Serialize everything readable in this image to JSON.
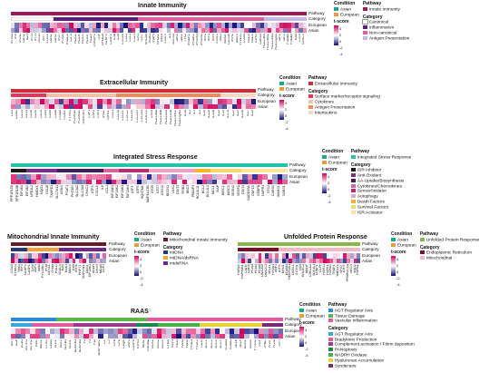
{
  "colors": {
    "asian": "#1fa78a",
    "european": "#ef9b3c",
    "pos": "#d6005a",
    "neg": "#12107e"
  },
  "colorbar": {
    "title": "t-score",
    "ticks": [
      "4",
      "2",
      "0",
      "-2",
      "-4"
    ]
  },
  "axis_labels": {
    "condition": "Condition",
    "pathway": "Pathway",
    "category": "Category",
    "european": "European",
    "asian": "Asian"
  },
  "panels": [
    {
      "id": "innate",
      "title": "Innate Immunity",
      "legend": {
        "condition": [
          "Asian",
          "European"
        ],
        "pathway": [
          "Innate Immunity"
        ],
        "category": [
          "Canonical",
          "Inflammation",
          "Non-canonical",
          "Antigen Presentation"
        ]
      },
      "genes": [
        "IFITM1",
        "IFI6",
        "IFI44L",
        "OAS1",
        "MX1",
        "IFIT1",
        "IFIT3",
        "ISG15",
        "IRF7",
        "STAT1",
        "OAS2",
        "OAS3",
        "IFI27",
        "IFITM3",
        "RSAD2",
        "CD74",
        "HLA-A",
        "HLA-B",
        "HLA-C",
        "HLA-E",
        "HLA-F",
        "TNFAIP3",
        "TNF",
        "NFKBIA",
        "NLRP3",
        "CASP1",
        "IL1B",
        "IL18",
        "CXCL8",
        "CCL2",
        "CCL3",
        "CCL4",
        "TLR4",
        "TLR7",
        "MYD88",
        "IRAK4",
        "TRAF6",
        "NFKB1",
        "RELA",
        "STAT3",
        "IL6",
        "SOCS3",
        "JAK1",
        "JAK2",
        "TYK2",
        "IFNAR1",
        "IFNAR2",
        "IFNGR1",
        "IFNGR2",
        "IRF1",
        "IRF3",
        "IRF9",
        "STAT2",
        "TBK1",
        "IKBKE",
        "DDX58",
        "IFIH1",
        "MAVS",
        "STING1",
        "CGAS",
        "NOD2",
        "NOD1",
        "RIPK2",
        "CARD9",
        "HLA-DRA",
        "HLA-DRB1",
        "HLA-DPA1",
        "HLA-DQA1",
        "TAP1",
        "TAP2",
        "PSMB8",
        "PSMB9",
        "B2M",
        "CIITA",
        "NLRC5"
      ]
    },
    {
      "id": "extracellular",
      "title": "Extracellular Immunity",
      "legend": {
        "condition": [
          "Asian",
          "European"
        ],
        "pathway": [
          "Extracellular Immunity"
        ],
        "category": [
          "Surface marker/receptor signaling",
          "Cytokines",
          "Antigen Presentation",
          "Interleukins"
        ]
      },
      "genes": [
        "CD4",
        "CD8A",
        "CD14",
        "CD19",
        "CD38",
        "CD40",
        "CD44",
        "CD69",
        "CD80",
        "CD86",
        "ITGAM",
        "ITGAX",
        "PTPRC",
        "FCGR1A",
        "FCGR3A",
        "TNFRSF4",
        "CSF1",
        "CSF2",
        "CSF3",
        "IFNG",
        "TGFB1",
        "CCL5",
        "CCL20",
        "CXCL1",
        "CXCL2",
        "CXCL9",
        "CXCL10",
        "CXCL11",
        "CX3CL1",
        "CIITA",
        "HLA-DMA",
        "HLA-DMB",
        "HLA-DOA",
        "HLA-DOB",
        "HLA-DPB1",
        "HLA-DQB1",
        "IL1A",
        "IL2",
        "IL4",
        "IL5",
        "IL10",
        "IL12A",
        "IL12B",
        "IL13",
        "IL15",
        "IL17A",
        "IL21",
        "IL22",
        "IL23A",
        "IL27",
        "IL33"
      ]
    },
    {
      "id": "isr",
      "title": "Integrated Stress Response",
      "legend": {
        "condition": [
          "Asian",
          "European"
        ],
        "pathway": [
          "Integrated Stress Response"
        ],
        "category": [
          "ISR Inhibitor",
          "Anti-Oxidant",
          "AA-Uptake/Biosynthesis",
          "Cytokines/Chemokines",
          "Sensor/Initiator",
          "Autophagy",
          "Death Factors",
          "Survival Factors",
          "ISR Activator"
        ]
      },
      "genes": [
        "PPP1R15A",
        "PPP1R15B",
        "EIF2B1",
        "EIF2B2",
        "NFE2L2",
        "HMOX1",
        "NQO1",
        "GCLM",
        "TXNRD1",
        "SLC7A11",
        "ASNS",
        "PSAT1",
        "PHGDH",
        "SLC3A2",
        "SLC1A5",
        "CHAC1",
        "ATF3",
        "CXCL8",
        "IL6",
        "CCL2",
        "EIF2AK1",
        "EIF2AK2",
        "EIF2AK3",
        "EIF2AK4",
        "ATF4",
        "ATF5",
        "SQSTM1",
        "MAP1LC3B",
        "ATG5",
        "ATG7",
        "ATG12",
        "BECN1",
        "ULK1",
        "DDIT3",
        "TRIB3",
        "BBC3",
        "PMAIP1",
        "BCL2L11",
        "BCL2",
        "BCL2L1",
        "MCL1",
        "XIAP",
        "BIRC2",
        "BIRC3",
        "SESN2",
        "VEGFA",
        "DDIT4",
        "GADD45A",
        "GDF15",
        "CEBPB",
        "NUPR1",
        "STC2",
        "CARS1",
        "WARS1",
        "SARS1"
      ]
    },
    {
      "id": "mito",
      "title": "Mitochondrial Innate Immunity",
      "legend": {
        "condition": [
          "Asian",
          "European"
        ],
        "pathway": [
          "Mitochondrial Innate Immunity"
        ],
        "category": [
          "mtDNA",
          "mtDNA/dsRNA",
          "mtdsRNA"
        ]
      },
      "genes": [
        "CGAS",
        "STING1",
        "TBK1",
        "IRF3",
        "NLRP3",
        "CASP1",
        "TLR9",
        "ZBP1",
        "AIM2",
        "PYCARD",
        "IFI16",
        "DDX41",
        "TFAM",
        "POLG",
        "VDAC1",
        "BAX",
        "BAK1",
        "MAVS",
        "RIGI",
        "IFIH1",
        "PNPT1",
        "SUPV3L1",
        "OAS1",
        "EIF2AK2",
        "ADAR",
        "DHX9",
        "MDA5",
        "LGP2"
      ]
    },
    {
      "id": "upr",
      "title": "Unfolded Protein Response",
      "legend": {
        "condition": [
          "Asian",
          "European"
        ],
        "pathway": [
          "Unfolded Protein Response"
        ],
        "category": [
          "Endoplasmic Reticulum",
          "Mitochondrial"
        ]
      },
      "genes": [
        "HSPA5",
        "HSP90B1",
        "CALR",
        "CANX",
        "PDIA3",
        "PDIA4",
        "PDIA6",
        "DNAJB9",
        "DNAJC3",
        "SEL1L",
        "HYOU1",
        "XBP1",
        "ATF6",
        "ERN1",
        "EDEM1",
        "HERPUD1",
        "DERL1",
        "SYVN1",
        "OS9",
        "ERLEC1",
        "MANF",
        "CRELD2",
        "SDF2L1",
        "LONP1",
        "CLPP",
        "HSPD1",
        "HSPE1",
        "HSPA9",
        "TRAP1",
        "YME1L1",
        "SPG7",
        "ATF5",
        "PPARGC1A",
        "SIRT3",
        "SOD2",
        "HSPB1"
      ]
    },
    {
      "id": "raas",
      "title": "RAAS",
      "legend": {
        "condition": [
          "Asian",
          "European"
        ],
        "pathway": [
          "AGT Regulator Axis",
          "Tissue Damage",
          "Vascular Inflammation"
        ],
        "category": [
          "AGT Regulator Axis",
          "Bradykinin Production",
          "Complement activation / Fibrin deposition",
          "PANoptosis",
          "NADPH Oxidase",
          "Hyaluronan Accumulation",
          "Syndecans"
        ]
      },
      "genes": [
        "AGT",
        "ACE",
        "ACE2",
        "AGTR1",
        "AGTR2",
        "REN",
        "MAS1",
        "CTSG",
        "CMA1",
        "KLK1",
        "KLK2",
        "KLKB1",
        "KNG1",
        "BDKRB1",
        "BDKRB2",
        "F2",
        "F3",
        "F12",
        "SERPINE1",
        "C3",
        "C5",
        "CFB",
        "CFD",
        "C1QA",
        "ZBP1",
        "CASP8",
        "RIPK3",
        "MLKL",
        "GSDMD",
        "NOX1",
        "NOX2",
        "NOX4",
        "CYBA",
        "NCF1",
        "HAS1",
        "HAS2",
        "HAS3",
        "HYAL1",
        "HYAL2",
        "CD44",
        "SDC1",
        "SDC2",
        "SDC3",
        "SDC4",
        "VCAM1",
        "ICAM1",
        "SELE",
        "SELP",
        "EDN1",
        "NOS3",
        "PTGS2",
        "VWF",
        "THBD",
        "PLAT",
        "PLAU",
        "TFPI"
      ]
    }
  ]
}
